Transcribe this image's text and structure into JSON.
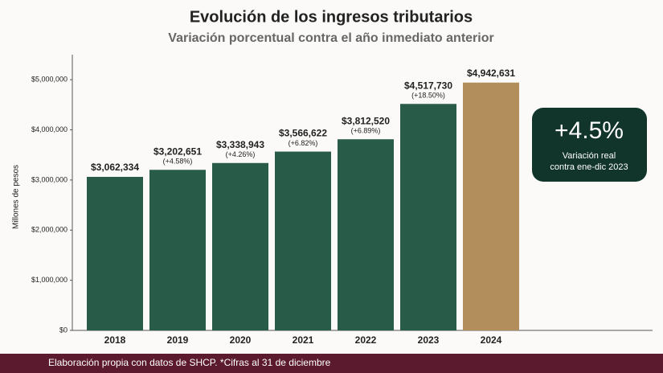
{
  "chart_data": {
    "type": "bar",
    "title": "Evolución de los ingresos tributarios",
    "subtitle": "Variación porcentual contra el año inmediato anterior",
    "y_label": "Millones de pesos",
    "categories": [
      "2018",
      "2019",
      "2020",
      "2021",
      "2022",
      "2023",
      "2024"
    ],
    "values": [
      3062334,
      3202651,
      3338943,
      3566622,
      3812520,
      4517730,
      4942631
    ],
    "value_labels": [
      "$3,062,334",
      "$3,202,651",
      "$3,338,943",
      "$3,566,622",
      "$3,812,520",
      "$4,517,730",
      "$4,942,631"
    ],
    "change_labels": [
      null,
      "(+4.58%)",
      "(+4.26%)",
      "(+6.82%)",
      "(+6.89%)",
      "(+18.50%)",
      null
    ],
    "colors": [
      "#285b48",
      "#285b48",
      "#285b48",
      "#285b48",
      "#285b48",
      "#285b48",
      "#b38e5d"
    ],
    "ylim": [
      0,
      5500000
    ],
    "yticks": [
      {
        "value": 0,
        "label": "$0"
      },
      {
        "value": 1000000,
        "label": "$1,000,000"
      },
      {
        "value": 2000000,
        "label": "$2,000,000"
      },
      {
        "value": 3000000,
        "label": "$3,000,000"
      },
      {
        "value": 4000000,
        "label": "$4,000,000"
      },
      {
        "value": 5000000,
        "label": "$5,000,000"
      }
    ],
    "callout": {
      "value": "+4.5%",
      "lines": [
        "Variación real",
        "contra ene-dic 2023"
      ]
    },
    "footnote": "Elaboración propia con datos de SHCP. *Cifras al 31 de diciembre"
  }
}
